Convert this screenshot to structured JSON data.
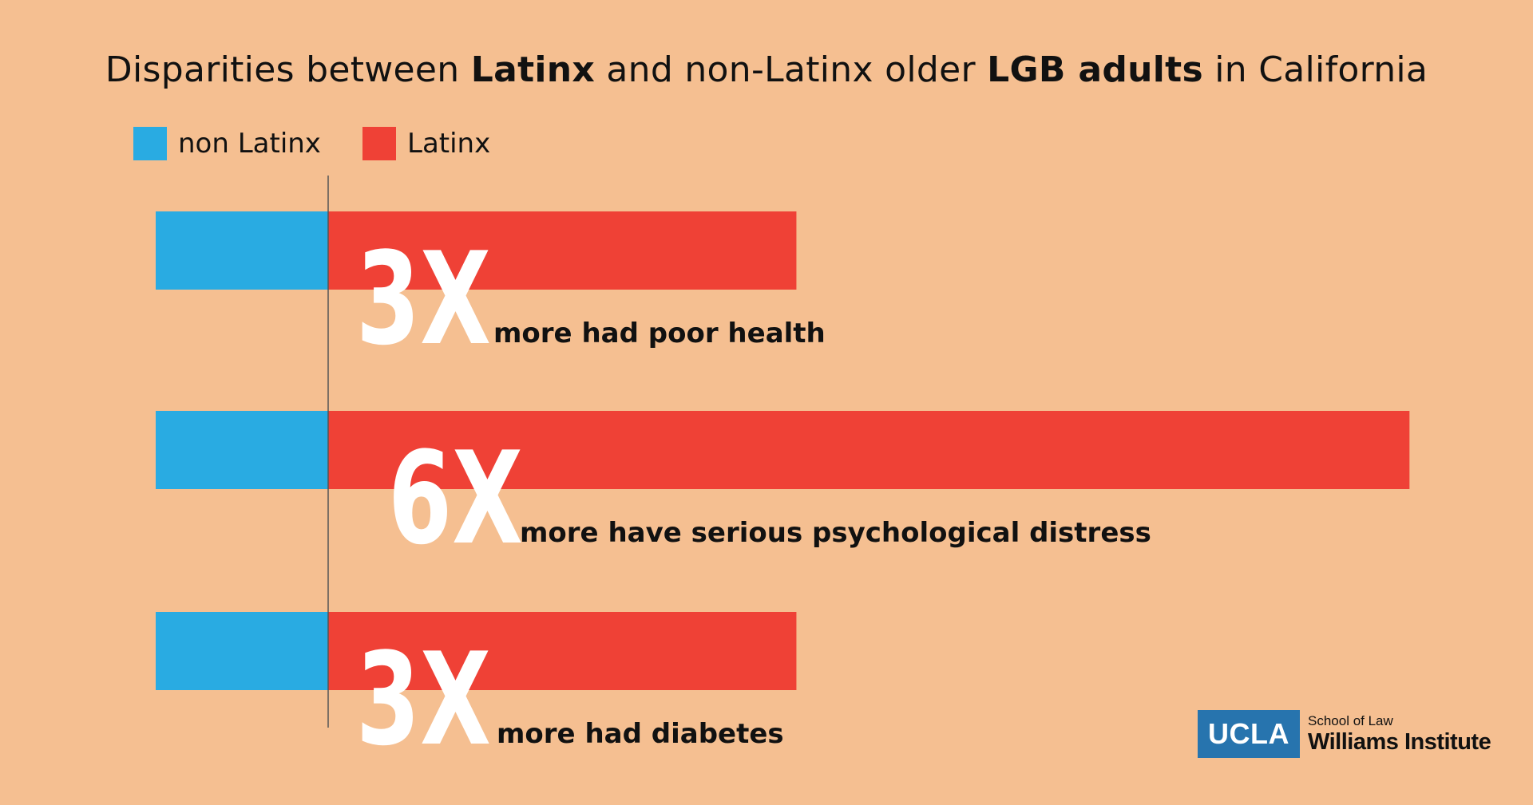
{
  "title": {
    "p1": "Disparities between ",
    "b1": "Latinx",
    "p2": " and non-Latinx older ",
    "b2": "LGB adults",
    "p3": " in California"
  },
  "legend": [
    {
      "label": "non Latinx",
      "color": "#29abe2"
    },
    {
      "label": "Latinx",
      "color": "#ef4136"
    }
  ],
  "chart_data": {
    "type": "bar",
    "orientation": "horizontal",
    "categories": [
      "more had poor health",
      "more have serious psychological distress",
      "more had diabetes"
    ],
    "series": [
      {
        "name": "non Latinx",
        "values": [
          1,
          1,
          1
        ],
        "color": "#29abe2"
      },
      {
        "name": "Latinx",
        "values": [
          3,
          6,
          3
        ],
        "color": "#ef4136"
      }
    ],
    "multipliers": [
      "3X",
      "6X",
      "3X"
    ]
  },
  "logo": {
    "box": "UCLA",
    "line1": "School of Law",
    "line2": "Williams Institute"
  }
}
